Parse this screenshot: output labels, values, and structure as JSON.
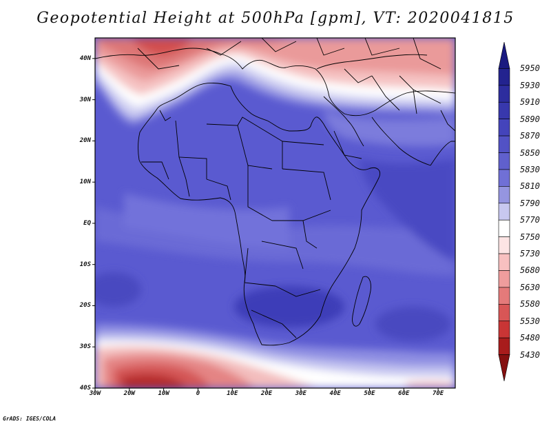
{
  "title": "Geopotential Height at 500hPa [gpm], VT: 2020041815",
  "credit": "GrADS: IGES/COLA",
  "lat_labels": [
    "40N",
    "30N",
    "20N",
    "10N",
    "EQ",
    "10S",
    "20S",
    "30S",
    "40S"
  ],
  "lat_values": [
    40,
    30,
    20,
    10,
    0,
    -10,
    -20,
    -30,
    -40
  ],
  "lon_labels": [
    "30W",
    "20W",
    "10W",
    "0",
    "10E",
    "20E",
    "30E",
    "40E",
    "50E",
    "60E",
    "70E"
  ],
  "lon_values": [
    -30,
    -20,
    -10,
    0,
    10,
    20,
    30,
    40,
    50,
    60,
    70
  ],
  "colorbar": {
    "labels": [
      "5950",
      "5930",
      "5910",
      "5890",
      "5870",
      "5850",
      "5830",
      "5810",
      "5790",
      "5770",
      "5750",
      "5730",
      "5680",
      "5630",
      "5580",
      "5530",
      "5480",
      "5430"
    ],
    "colors": [
      "#1a1a80",
      "#23238f",
      "#2d2d9e",
      "#3838ad",
      "#4444bb",
      "#5252c5",
      "#6060cd",
      "#7070d6",
      "#9595e0",
      "#c8c8f0",
      "#ffffff",
      "#fde4e4",
      "#f8c0c0",
      "#ef9d9d",
      "#e47a7a",
      "#d85656",
      "#c93535",
      "#a81c1c",
      "#851010"
    ]
  }
}
